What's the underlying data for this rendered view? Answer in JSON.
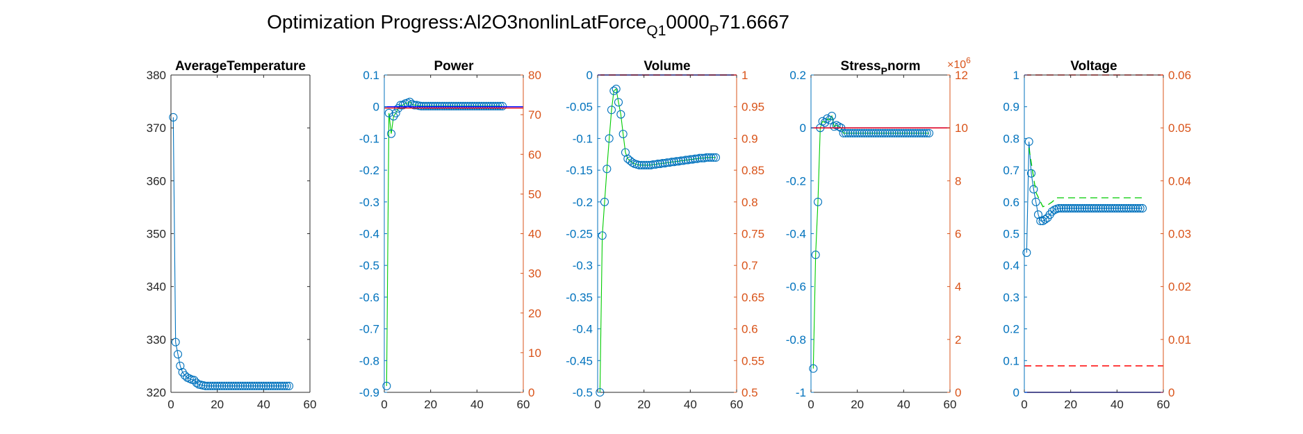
{
  "figure": {
    "title": "Optimization Progress:Al2O3nonlinLatForce",
    "title_sub1": "Q1",
    "title_mid": "0000",
    "title_sub2": "P",
    "title_end": "71.6667"
  },
  "colors": {
    "left_axis": "#0072BD",
    "right_axis": "#D95319",
    "marker": "#0072BD",
    "green": "#00CC00",
    "red": "#FF0000",
    "blue_line": "#0000FF",
    "axis_black": "#262626"
  },
  "chart_data": [
    {
      "type": "line",
      "title": "AverageTemperature",
      "xlim": [
        0,
        60
      ],
      "xticks": [
        0,
        20,
        40,
        60
      ],
      "ylim": [
        320,
        380
      ],
      "yticks": [
        320,
        330,
        340,
        350,
        360,
        370,
        380
      ],
      "left_color": "black",
      "right_axis": false,
      "series": [
        {
          "x": [
            1,
            2,
            3,
            4,
            5,
            6,
            7,
            8,
            9,
            10,
            11,
            12,
            13,
            14,
            15,
            16,
            17,
            18,
            19,
            20,
            21,
            22,
            23,
            24,
            25,
            26,
            27,
            28,
            29,
            30,
            31,
            32,
            33,
            34,
            35,
            36,
            37,
            38,
            39,
            40,
            41,
            42,
            43,
            44,
            45,
            46,
            47,
            48,
            49,
            50,
            51
          ],
          "y": [
            372,
            329.5,
            327.2,
            325,
            323.8,
            323.2,
            322.8,
            322.6,
            322.4,
            322.3,
            321.8,
            321.5,
            321.4,
            321.3,
            321.2,
            321.2,
            321.2,
            321.2,
            321.2,
            321.2,
            321.2,
            321.2,
            321.2,
            321.2,
            321.2,
            321.2,
            321.2,
            321.2,
            321.2,
            321.2,
            321.2,
            321.2,
            321.2,
            321.2,
            321.2,
            321.2,
            321.2,
            321.2,
            321.2,
            321.2,
            321.2,
            321.2,
            321.2,
            321.2,
            321.2,
            321.2,
            321.2,
            321.2,
            321.2,
            321.2,
            321.2
          ],
          "style": "markers-line"
        }
      ]
    },
    {
      "type": "line",
      "title": "Power",
      "xlim": [
        0,
        60
      ],
      "xticks": [
        0,
        20,
        40,
        60
      ],
      "ylim": [
        -0.9,
        0.1
      ],
      "yticks": [
        -0.9,
        -0.8,
        -0.7,
        -0.6,
        -0.5,
        -0.4,
        -0.3,
        -0.2,
        -0.1,
        0,
        0.1
      ],
      "yticklabels": [
        "-0.9",
        "-0.8",
        "-0.7",
        "-0.6",
        "-0.5",
        "-0.4",
        "-0.3",
        "-0.2",
        "-0.1",
        "0",
        "0.1"
      ],
      "left_color": "blue",
      "right_axis": true,
      "ylim_right": [
        0,
        80
      ],
      "yticks_right": [
        0,
        10,
        20,
        30,
        40,
        50,
        60,
        70,
        80
      ],
      "series": [
        {
          "x": [
            1,
            2,
            3,
            4,
            5,
            6,
            7,
            8,
            9,
            10,
            11,
            12,
            13,
            14,
            15,
            16,
            17,
            18,
            19,
            20,
            21,
            22,
            23,
            24,
            25,
            26,
            27,
            28,
            29,
            30,
            31,
            32,
            33,
            34,
            35,
            36,
            37,
            38,
            39,
            40,
            41,
            42,
            43,
            44,
            45,
            46,
            47,
            48,
            49,
            50,
            51
          ],
          "y": [
            -0.88,
            -0.02,
            -0.085,
            -0.03,
            -0.02,
            -0.005,
            0.005,
            0.005,
            0.01,
            0.012,
            0.015,
            0.008,
            0.005,
            0.005,
            0.003,
            0.002,
            0.002,
            0.002,
            0.002,
            0.002,
            0.002,
            0.002,
            0.002,
            0.002,
            0.002,
            0.002,
            0.002,
            0.002,
            0.002,
            0.002,
            0.002,
            0.002,
            0.002,
            0.002,
            0.002,
            0.002,
            0.002,
            0.002,
            0.002,
            0.002,
            0.002,
            0.002,
            0.002,
            0.002,
            0.002,
            0.002,
            0.002,
            0.002,
            0.002,
            0.002,
            0.002
          ],
          "style": "markers-green-line"
        },
        {
          "x": [
            0,
            60
          ],
          "y": [
            0,
            0
          ],
          "style": "solid-blue"
        },
        {
          "x": [
            0,
            60
          ],
          "y": [
            71.6667,
            71.6667
          ],
          "axis": "right",
          "style": "solid-red"
        }
      ]
    },
    {
      "type": "line",
      "title": "Volume",
      "xlim": [
        0,
        60
      ],
      "xticks": [
        0,
        20,
        40,
        60
      ],
      "ylim": [
        -0.5,
        0
      ],
      "yticks": [
        -0.5,
        -0.45,
        -0.4,
        -0.35,
        -0.3,
        -0.25,
        -0.2,
        -0.15,
        -0.1,
        -0.05,
        0
      ],
      "yticklabels": [
        "-0.5",
        "-0.45",
        "-0.4",
        "-0.35",
        "-0.3",
        "-0.25",
        "-0.2",
        "-0.15",
        "-0.1",
        "-0.05",
        "0"
      ],
      "left_color": "blue",
      "right_axis": true,
      "ylim_right": [
        0.5,
        1
      ],
      "yticks_right": [
        0.5,
        0.55,
        0.6,
        0.65,
        0.7,
        0.75,
        0.8,
        0.85,
        0.9,
        0.95,
        1
      ],
      "yticklabels_right": [
        "0.5",
        "0.55",
        "0.6",
        "0.65",
        "0.7",
        "0.75",
        "0.8",
        "0.85",
        "0.9",
        "0.95",
        "1"
      ],
      "series": [
        {
          "x": [
            1,
            2,
            3,
            4,
            5,
            6,
            7,
            8,
            9,
            10,
            11,
            12,
            13,
            14,
            15,
            16,
            17,
            18,
            19,
            20,
            21,
            22,
            23,
            24,
            25,
            26,
            27,
            28,
            29,
            30,
            31,
            32,
            33,
            34,
            35,
            36,
            37,
            38,
            39,
            40,
            41,
            42,
            43,
            44,
            45,
            46,
            47,
            48,
            49,
            50,
            51
          ],
          "y": [
            -0.5,
            -0.253,
            -0.2,
            -0.148,
            -0.1,
            -0.055,
            -0.025,
            -0.022,
            -0.043,
            -0.062,
            -0.093,
            -0.122,
            -0.132,
            -0.135,
            -0.138,
            -0.14,
            -0.141,
            -0.142,
            -0.142,
            -0.142,
            -0.142,
            -0.142,
            -0.142,
            -0.141,
            -0.141,
            -0.14,
            -0.14,
            -0.139,
            -0.139,
            -0.138,
            -0.138,
            -0.137,
            -0.137,
            -0.136,
            -0.136,
            -0.135,
            -0.135,
            -0.134,
            -0.134,
            -0.133,
            -0.133,
            -0.132,
            -0.132,
            -0.131,
            -0.131,
            -0.131,
            -0.13,
            -0.13,
            -0.13,
            -0.13,
            -0.13
          ],
          "style": "markers-green-line"
        },
        {
          "x": [
            0,
            60
          ],
          "y": [
            0,
            0
          ],
          "style": "solid-blue"
        },
        {
          "x": [
            0,
            60
          ],
          "y": [
            1,
            1
          ],
          "axis": "right",
          "style": "dashed-red"
        }
      ]
    },
    {
      "type": "line",
      "title": "Stress",
      "title_sub": "P",
      "title_end": "norm",
      "xlim": [
        0,
        60
      ],
      "xticks": [
        0,
        20,
        40,
        60
      ],
      "ylim": [
        -1,
        0.2
      ],
      "yticks": [
        -1,
        -0.8,
        -0.6,
        -0.4,
        -0.2,
        0,
        0.2
      ],
      "yticklabels": [
        "-1",
        "-0.8",
        "-0.6",
        "-0.4",
        "-0.2",
        "0",
        "0.2"
      ],
      "left_color": "blue",
      "right_axis": true,
      "ylim_right": [
        0,
        12
      ],
      "yticks_right": [
        0,
        2,
        4,
        6,
        8,
        10,
        12
      ],
      "right_exponent_base": "×10",
      "right_exponent_power": "6",
      "series": [
        {
          "x": [
            1,
            2,
            3,
            4,
            5,
            6,
            7,
            8,
            9,
            10,
            11,
            12,
            13,
            14,
            15,
            16,
            17,
            18,
            19,
            20,
            21,
            22,
            23,
            24,
            25,
            26,
            27,
            28,
            29,
            30,
            31,
            32,
            33,
            34,
            35,
            36,
            37,
            38,
            39,
            40,
            41,
            42,
            43,
            44,
            45,
            46,
            47,
            48,
            49,
            50,
            51
          ],
          "y": [
            -0.91,
            -0.48,
            -0.28,
            0,
            0.025,
            0.02,
            0.035,
            0.03,
            0.045,
            0.005,
            0.01,
            0.005,
            0,
            -0.02,
            -0.02,
            -0.02,
            -0.02,
            -0.02,
            -0.02,
            -0.02,
            -0.02,
            -0.02,
            -0.02,
            -0.02,
            -0.02,
            -0.02,
            -0.02,
            -0.02,
            -0.02,
            -0.02,
            -0.02,
            -0.02,
            -0.02,
            -0.02,
            -0.02,
            -0.02,
            -0.02,
            -0.02,
            -0.02,
            -0.02,
            -0.02,
            -0.02,
            -0.02,
            -0.02,
            -0.02,
            -0.02,
            -0.02,
            -0.02,
            -0.02,
            -0.02,
            -0.02
          ],
          "style": "markers-green-line"
        },
        {
          "x": [
            0,
            60
          ],
          "y": [
            0,
            0
          ],
          "style": "solid-blue"
        },
        {
          "x": [
            0,
            60
          ],
          "y": [
            10,
            10
          ],
          "axis": "right",
          "style": "solid-red"
        }
      ]
    },
    {
      "type": "line",
      "title": "Voltage",
      "xlim": [
        0,
        60
      ],
      "xticks": [
        0,
        20,
        40,
        60
      ],
      "ylim": [
        0,
        1
      ],
      "yticks": [
        0,
        0.1,
        0.2,
        0.3,
        0.4,
        0.5,
        0.6,
        0.7,
        0.8,
        0.9,
        1
      ],
      "yticklabels": [
        "0",
        "0.1",
        "0.2",
        "0.3",
        "0.4",
        "0.5",
        "0.6",
        "0.7",
        "0.8",
        "0.9",
        "1"
      ],
      "left_color": "blue",
      "right_axis": true,
      "ylim_right": [
        0,
        0.06
      ],
      "yticks_right": [
        0,
        0.01,
        0.02,
        0.03,
        0.04,
        0.05,
        0.06
      ],
      "yticklabels_right": [
        "0",
        "0.01",
        "0.02",
        "0.03",
        "0.04",
        "0.05",
        "0.06"
      ],
      "series": [
        {
          "x": [
            1,
            2,
            3,
            4,
            5,
            6,
            7,
            8,
            9,
            10,
            11,
            12,
            13,
            14,
            15,
            16,
            17,
            18,
            19,
            20,
            21,
            22,
            23,
            24,
            25,
            26,
            27,
            28,
            29,
            30,
            31,
            32,
            33,
            34,
            35,
            36,
            37,
            38,
            39,
            40,
            41,
            42,
            43,
            44,
            45,
            46,
            47,
            48,
            49,
            50,
            51
          ],
          "y": [
            0.44,
            0.79,
            0.69,
            0.64,
            0.6,
            0.56,
            0.54,
            0.54,
            0.545,
            0.55,
            0.56,
            0.57,
            0.575,
            0.578,
            0.58,
            0.58,
            0.58,
            0.58,
            0.58,
            0.58,
            0.58,
            0.58,
            0.58,
            0.58,
            0.58,
            0.58,
            0.58,
            0.58,
            0.58,
            0.58,
            0.58,
            0.58,
            0.58,
            0.58,
            0.58,
            0.58,
            0.58,
            0.58,
            0.58,
            0.58,
            0.58,
            0.58,
            0.58,
            0.58,
            0.58,
            0.58,
            0.58,
            0.58,
            0.58,
            0.58,
            0.58
          ],
          "style": "markers-line"
        },
        {
          "x": [
            2,
            5,
            8,
            10,
            12,
            14,
            20,
            51
          ],
          "y": [
            0.77,
            0.63,
            0.585,
            0.59,
            0.6,
            0.613,
            0.613,
            0.613
          ],
          "style": "dashed-green"
        },
        {
          "x": [
            0,
            60
          ],
          "y": [
            0,
            0
          ],
          "style": "solid-blue"
        },
        {
          "x": [
            0,
            60
          ],
          "y": [
            0.06,
            0.06
          ],
          "axis": "right",
          "style": "dashed-red"
        },
        {
          "x": [
            0,
            60
          ],
          "y": [
            0.005,
            0.005
          ],
          "axis": "right",
          "style": "dashed-red"
        }
      ]
    }
  ]
}
